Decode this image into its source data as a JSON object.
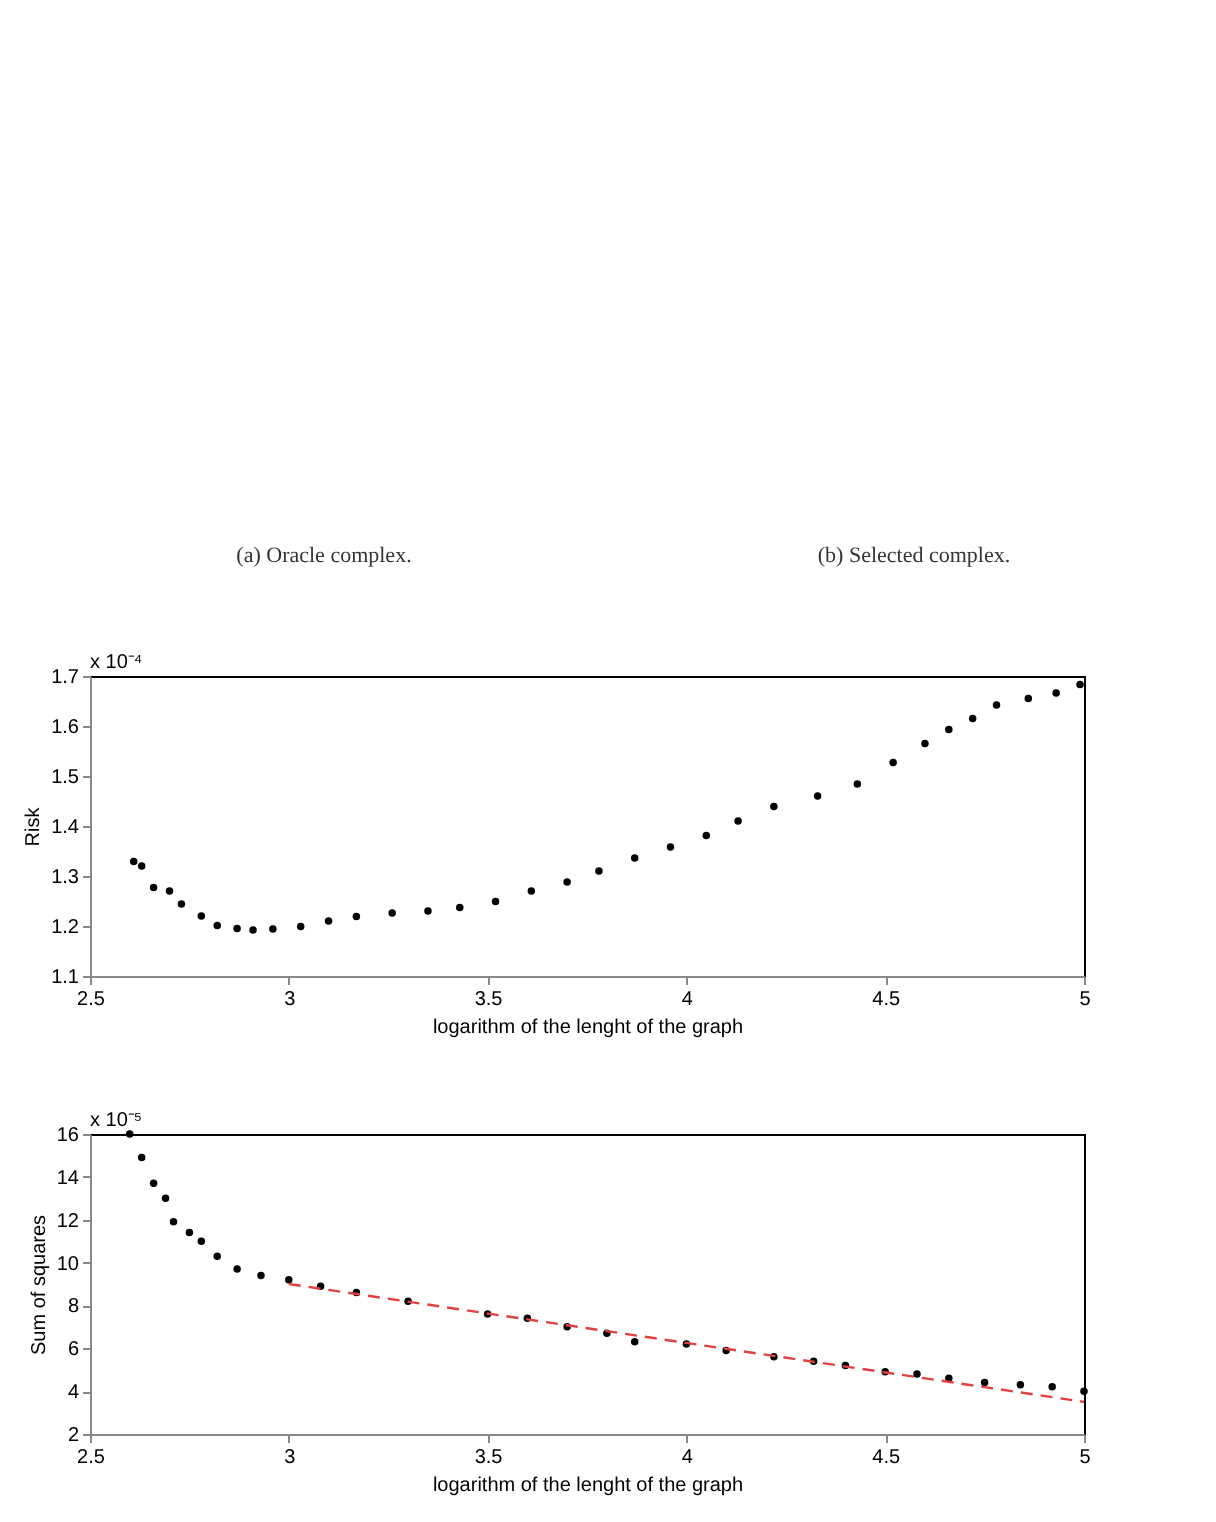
{
  "chart_data": [
    {
      "type": "other",
      "annotations": [
        "(a) Oracle complex."
      ]
    },
    {
      "type": "other",
      "annotations": [
        "(b) Selected complex."
      ]
    },
    {
      "type": "scatter",
      "xlabel": "logarithm of the lenght of the graph",
      "ylabel": "Risk",
      "annotations": [
        "x 10⁻⁴"
      ],
      "xlim": [
        2.5,
        5
      ],
      "xticks": [
        2.5,
        3,
        3.5,
        4,
        4.5,
        5
      ],
      "ylim": [
        1.1,
        1.7
      ],
      "yticks": [
        1.1,
        1.2,
        1.3,
        1.4,
        1.5,
        1.6,
        1.7
      ],
      "grid": false,
      "series": [
        {
          "color": "#000000",
          "marker": "circle",
          "x": [
            2.61,
            2.63,
            2.66,
            2.7,
            2.73,
            2.78,
            2.82,
            2.87,
            2.91,
            2.96,
            3.03,
            3.1,
            3.17,
            3.26,
            3.35,
            3.43,
            3.52,
            3.61,
            3.7,
            3.78,
            3.87,
            3.96,
            4.05,
            4.13,
            4.22,
            4.33,
            4.43,
            4.52,
            4.6,
            4.66,
            4.72,
            4.78,
            4.86,
            4.93,
            4.99
          ],
          "values": [
            1.329,
            1.32,
            1.277,
            1.27,
            1.244,
            1.22,
            1.201,
            1.195,
            1.192,
            1.194,
            1.199,
            1.21,
            1.219,
            1.226,
            1.23,
            1.237,
            1.249,
            1.27,
            1.288,
            1.31,
            1.336,
            1.358,
            1.381,
            1.41,
            1.439,
            1.46,
            1.484,
            1.527,
            1.565,
            1.593,
            1.615,
            1.642,
            1.655,
            1.666,
            1.683
          ]
        }
      ]
    },
    {
      "type": "scatter",
      "xlabel": "logarithm of the lenght of the graph",
      "ylabel": "Sum of squares",
      "annotations": [
        "x 10⁻⁵"
      ],
      "xlim": [
        2.5,
        5
      ],
      "xticks": [
        2.5,
        3,
        3.5,
        4,
        4.5,
        5
      ],
      "ylim": [
        2,
        16
      ],
      "yticks": [
        2,
        4,
        6,
        8,
        10,
        12,
        14,
        16
      ],
      "grid": false,
      "series": [
        {
          "color": "#000000",
          "marker": "circle",
          "x": [
            2.6,
            2.63,
            2.66,
            2.69,
            2.71,
            2.75,
            2.78,
            2.82,
            2.87,
            2.93,
            3.0,
            3.08,
            3.17,
            3.3,
            3.5,
            3.6,
            3.7,
            3.8,
            3.87,
            4.0,
            4.1,
            4.22,
            4.32,
            4.4,
            4.5,
            4.58,
            4.66,
            4.75,
            4.84,
            4.92,
            5.0
          ],
          "values": [
            16.0,
            14.9,
            13.7,
            13.0,
            11.9,
            11.4,
            11.0,
            10.3,
            9.7,
            9.4,
            9.2,
            8.9,
            8.6,
            8.2,
            7.6,
            7.4,
            7.0,
            6.7,
            6.3,
            6.2,
            5.9,
            5.6,
            5.4,
            5.2,
            4.9,
            4.8,
            4.6,
            4.4,
            4.3,
            4.2,
            4.0
          ]
        },
        {
          "type": "line",
          "color": "#e04040",
          "line_style": "dashed",
          "x": [
            3,
            5
          ],
          "values": [
            9.0,
            3.5
          ]
        }
      ]
    }
  ]
}
